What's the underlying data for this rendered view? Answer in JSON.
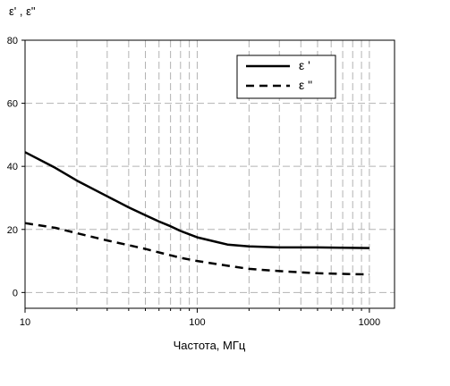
{
  "chart_data": {
    "type": "line",
    "title": "",
    "ylabel": "ε' , ε\"",
    "xlabel": "Частота, МГц",
    "xscale": "log",
    "xlim": [
      10,
      1400
    ],
    "ylim": [
      -5,
      80
    ],
    "x_ticks": [
      10,
      100,
      1000
    ],
    "x_tick_labels": [
      "10",
      "100",
      "1000"
    ],
    "y_ticks": [
      0,
      20,
      40,
      60,
      80
    ],
    "y_tick_labels": [
      "0",
      "20",
      "40",
      "60",
      "80"
    ],
    "grid": true,
    "legend_position": "top-right",
    "series": [
      {
        "name": "ε '",
        "style": "solid",
        "color": "#000000",
        "x": [
          10,
          15,
          20,
          30,
          40,
          50,
          60,
          70,
          80,
          100,
          130,
          150,
          200,
          300,
          500,
          700,
          1000
        ],
        "y": [
          44.5,
          39.5,
          35.5,
          30.5,
          27,
          24.5,
          22.5,
          21,
          19.5,
          17.5,
          16,
          15.2,
          14.6,
          14.3,
          14.3,
          14.2,
          14.1
        ]
      },
      {
        "name": "ε \"",
        "style": "dashed",
        "color": "#000000",
        "x": [
          10,
          15,
          20,
          30,
          40,
          50,
          60,
          70,
          80,
          100,
          150,
          200,
          300,
          500,
          700,
          1000
        ],
        "y": [
          22,
          20.5,
          18.8,
          16.5,
          15,
          13.8,
          12.7,
          11.8,
          11,
          10,
          8.5,
          7.5,
          6.8,
          6.1,
          5.9,
          5.7
        ]
      }
    ]
  }
}
